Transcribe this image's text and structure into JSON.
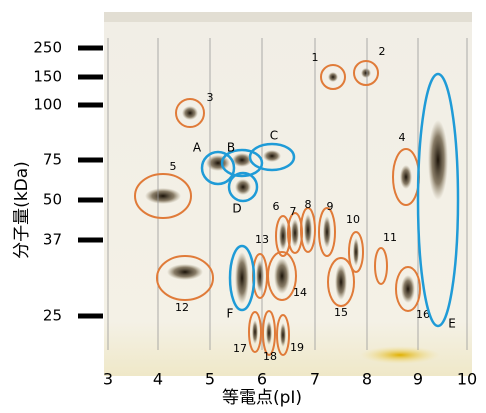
{
  "x_axis": {
    "label": "等電点(pI)",
    "ticks": [
      3,
      4,
      5,
      6,
      7,
      8,
      9,
      10
    ]
  },
  "y_axis": {
    "label": "分子量(kDa)",
    "ticks": [
      250,
      150,
      100,
      75,
      50,
      37,
      25
    ]
  },
  "orange_spots": [
    "1",
    "2",
    "3",
    "4",
    "5",
    "6",
    "7",
    "8",
    "9",
    "10",
    "11",
    "12",
    "13",
    "14",
    "15",
    "16",
    "17",
    "18",
    "19"
  ],
  "blue_spots": [
    "A",
    "B",
    "C",
    "D",
    "E",
    "F"
  ]
}
